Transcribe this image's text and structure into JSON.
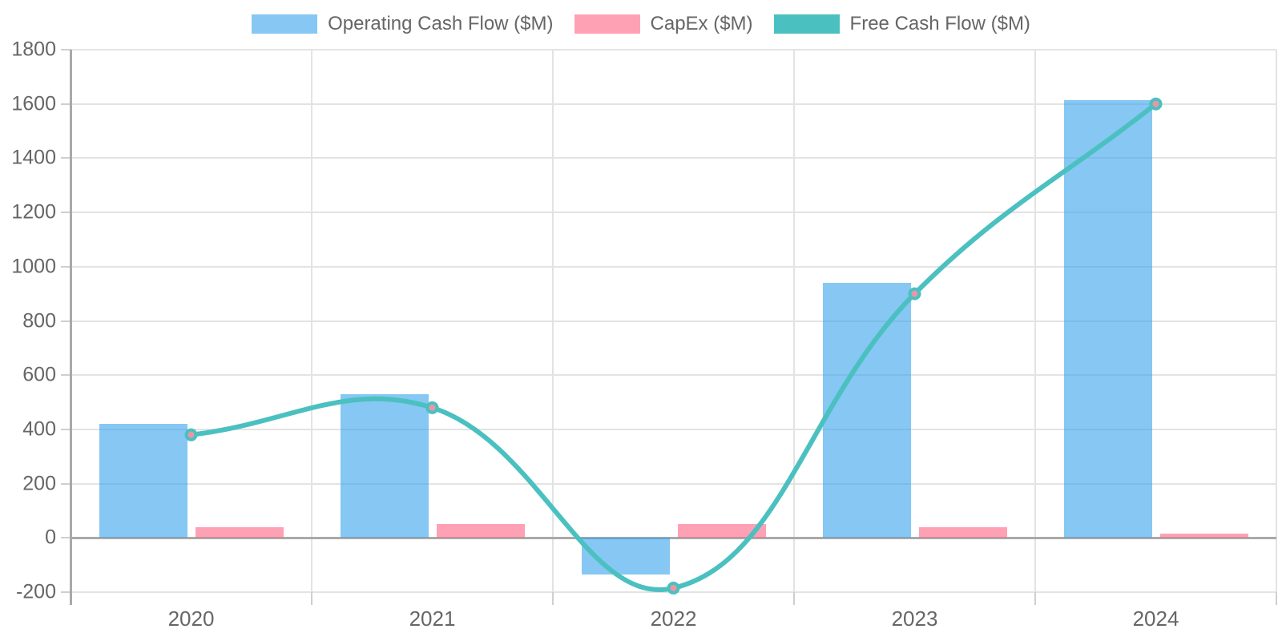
{
  "chart_data": {
    "type": "combo-bar-line",
    "title": "",
    "xlabel": "",
    "ylabel": "",
    "categories": [
      "2020",
      "2021",
      "2022",
      "2023",
      "2024"
    ],
    "series": [
      {
        "name": "Operating Cash Flow ($M)",
        "type": "bar",
        "color": "rgba(54,162,235,0.6)",
        "legend_color": "#86C7F3",
        "values": [
          420,
          530,
          -135,
          940,
          1615
        ]
      },
      {
        "name": "CapEx ($M)",
        "type": "bar",
        "color": "rgba(255,99,132,0.6)",
        "legend_color": "#FFA1B5",
        "values": [
          40,
          50,
          50,
          40,
          15
        ]
      },
      {
        "name": "Free Cash Flow ($M)",
        "type": "line",
        "color": "#4BC0C0",
        "point_fill": "#E897A4",
        "values": [
          380,
          480,
          -185,
          900,
          1600
        ]
      }
    ],
    "ylim": [
      -200,
      1800
    ],
    "y_tick_step": 200,
    "y_tick_labels": [
      "1800",
      "1600",
      "1400",
      "1200",
      "1000",
      "800",
      "600",
      "400",
      "200",
      "0",
      "-200"
    ],
    "grid": true,
    "legend_position": "top",
    "line_tension": 0.4,
    "grid_color": "#e3e3e3",
    "axis_color": "#a9a9a9",
    "tick_text_color": "#666666"
  }
}
